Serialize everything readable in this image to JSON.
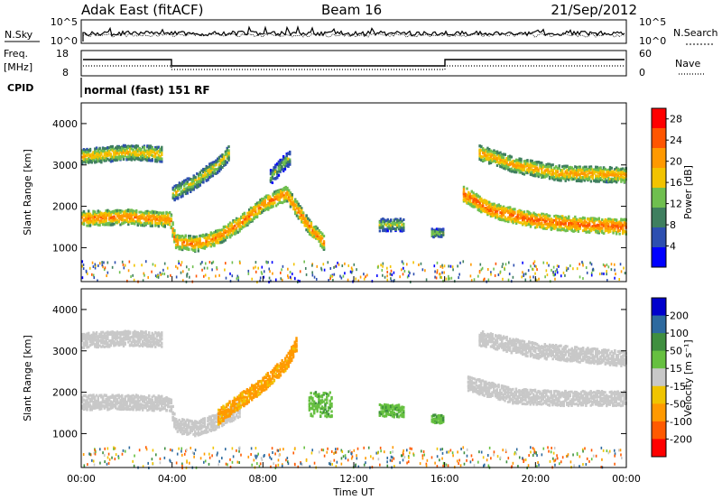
{
  "header": {
    "station": "Adak East (fitACF)",
    "beam": "Beam 16",
    "date": "21/Sep/2012"
  },
  "noise_panel": {
    "left_label": "N.Sky",
    "right_label": "N.Search",
    "ticks": [
      "10^5",
      "10^0"
    ]
  },
  "freq_panel": {
    "left_label_1": "Freq.",
    "left_label_2": "[MHz]",
    "left_ticks": [
      "18",
      "8"
    ],
    "right_ticks": [
      "60",
      "0"
    ],
    "right_label": "Nave"
  },
  "cpid": {
    "label": "CPID",
    "text": "normal (fast) 151 RF"
  },
  "colors": {
    "power_scale": [
      "#0000ff",
      "#2d4fb0",
      "#3f7f5f",
      "#6fbf4f",
      "#f2c300",
      "#ff9900",
      "#ff5500",
      "#ff0000"
    ],
    "velocity_scale": [
      "#ff0000",
      "#ff5a00",
      "#ff9900",
      "#f0c400",
      "#c8c8c8",
      "#66c040",
      "#3f8f3f",
      "#2d6a9f",
      "#0000cc"
    ]
  },
  "chart_data": [
    {
      "type": "heatmap",
      "title": "Power",
      "ylabel": "Slant Range [km]",
      "xlabel": "",
      "ylim": [
        180,
        4500
      ],
      "xlim": [
        0,
        24
      ],
      "yticks": [
        "1000",
        "2000",
        "3000",
        "4000"
      ],
      "colorbar_label": "Power [dB]",
      "colorbar_ticks": [
        "28",
        "24",
        "20",
        "16",
        "12",
        "8",
        "4"
      ],
      "colorbar_range": [
        0,
        30
      ],
      "features": [
        {
          "name": "band-a",
          "t": [
            0,
            1,
            2,
            3,
            3.9,
            4.1,
            5,
            6,
            7,
            8,
            9,
            10,
            10.7
          ],
          "r": [
            1700,
            1720,
            1740,
            1700,
            1680,
            1150,
            1080,
            1250,
            1600,
            2050,
            2300,
            1500,
            1100
          ],
          "power": 24
        },
        {
          "name": "band-b",
          "t": [
            0,
            1,
            2,
            3,
            3.5
          ],
          "r": [
            3200,
            3250,
            3300,
            3280,
            3250
          ],
          "power": 20
        },
        {
          "name": "band-c",
          "t": [
            4.0,
            5.0,
            6.0,
            6.5
          ],
          "r": [
            2300,
            2600,
            3000,
            3300
          ],
          "power": 18
        },
        {
          "name": "band-d",
          "t": [
            8.3,
            8.8,
            9.2
          ],
          "r": [
            2700,
            3000,
            3200
          ],
          "power": 14
        },
        {
          "name": "patch-1",
          "t": [
            13.1,
            14.2
          ],
          "r": [
            1400,
            1700
          ],
          "power": 16
        },
        {
          "name": "patch-2",
          "t": [
            15.4,
            15.9
          ],
          "r": [
            1250,
            1450
          ],
          "power": 16
        },
        {
          "name": "band-e",
          "t": [
            16.8,
            18,
            20,
            22,
            24
          ],
          "r": [
            2300,
            1900,
            1650,
            1550,
            1500
          ],
          "power": 26
        },
        {
          "name": "band-f",
          "t": [
            17.5,
            19,
            21,
            24
          ],
          "r": [
            3300,
            3000,
            2800,
            2750
          ],
          "power": 22
        }
      ]
    },
    {
      "type": "heatmap",
      "title": "Velocity",
      "ylabel": "Slant Range [km]",
      "xlabel": "Time UT",
      "ylim": [
        180,
        4500
      ],
      "xlim": [
        0,
        24
      ],
      "yticks": [
        "1000",
        "2000",
        "3000",
        "4000"
      ],
      "xticks": [
        "00:00",
        "04:00",
        "08:00",
        "12:00",
        "16:00",
        "20:00",
        "00:00"
      ],
      "colorbar_label": "Velocity [m s⁻¹]",
      "colorbar_ticks": [
        "200",
        "100",
        "50",
        "15",
        "-15",
        "-50",
        "-100",
        "-200"
      ],
      "colorbar_range": [
        -250,
        250
      ],
      "features": [
        {
          "name": "gs-band-a",
          "t": [
            0,
            2,
            3.9,
            4.1,
            5,
            6,
            7
          ],
          "r": [
            1750,
            1760,
            1720,
            1200,
            1120,
            1300,
            1600
          ],
          "velocity": 0
        },
        {
          "name": "gs-band-b",
          "t": [
            0,
            2,
            3.5
          ],
          "r": [
            3250,
            3300,
            3270
          ],
          "velocity": 0
        },
        {
          "name": "tail-a",
          "t": [
            6,
            7,
            8,
            9,
            9.5
          ],
          "r": [
            1400,
            1800,
            2200,
            2700,
            3200
          ],
          "velocity": -60
        },
        {
          "name": "green-1",
          "t": [
            10.0,
            11.0
          ],
          "r": [
            1400,
            2000
          ],
          "velocity": 40
        },
        {
          "name": "green-2",
          "t": [
            13.1,
            14.2
          ],
          "r": [
            1400,
            1700
          ],
          "velocity": 40
        },
        {
          "name": "green-3",
          "t": [
            15.4,
            15.9
          ],
          "r": [
            1250,
            1450
          ],
          "velocity": 40
        },
        {
          "name": "gs-band-c",
          "t": [
            17,
            19,
            21,
            24
          ],
          "r": [
            2200,
            1900,
            1850,
            1850
          ],
          "velocity": 0
        },
        {
          "name": "gs-band-d",
          "t": [
            17.5,
            20,
            24
          ],
          "r": [
            3300,
            3000,
            2800
          ],
          "velocity": 0
        }
      ]
    }
  ]
}
